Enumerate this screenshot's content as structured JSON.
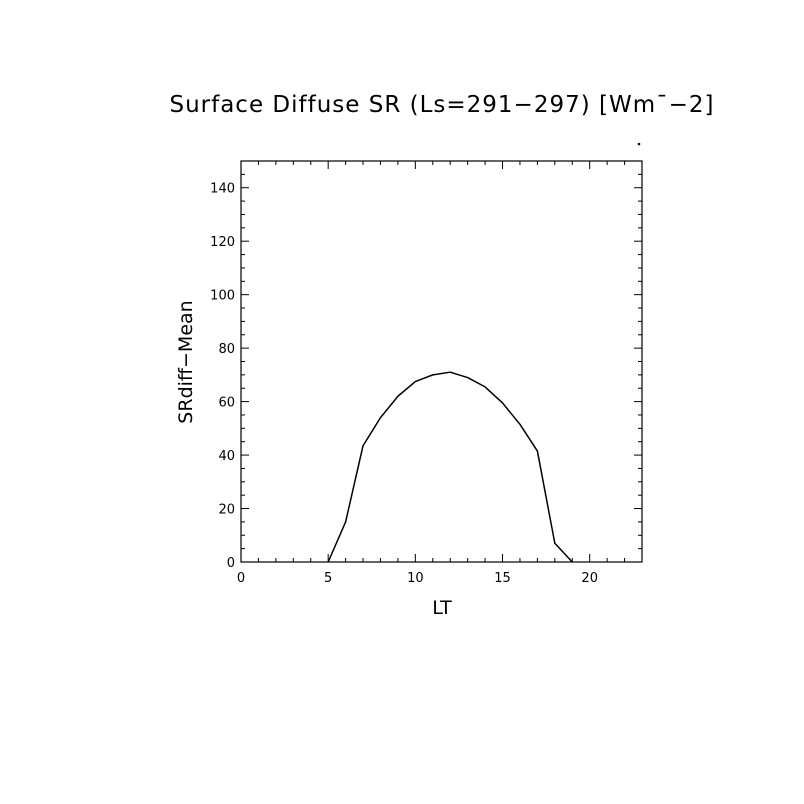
{
  "chart_data": {
    "type": "line",
    "title": "Surface Diffuse SR (Ls=291−297) [Wm¯−2]",
    "xlabel": "LT",
    "ylabel": "SRdiff−Mean",
    "xlim": [
      0,
      23
    ],
    "ylim": [
      0,
      150
    ],
    "xticks": [
      0,
      5,
      10,
      15,
      20
    ],
    "xtick_labels": [
      "0",
      "5",
      "10",
      "15",
      "20"
    ],
    "yticks": [
      0,
      20,
      40,
      60,
      80,
      100,
      120,
      140
    ],
    "ytick_labels": [
      "0",
      "20",
      "40",
      "60",
      "80",
      "100",
      "120",
      "140"
    ],
    "grid": false,
    "series": [
      {
        "x": [
          5,
          6,
          7,
          8,
          9,
          10,
          11,
          12,
          13,
          14,
          15,
          16,
          17,
          18,
          19
        ],
        "y": [
          0,
          15,
          43.5,
          54,
          62,
          67.5,
          70,
          71,
          69,
          65.5,
          59.5,
          51.5,
          41.5,
          7,
          0
        ]
      }
    ]
  },
  "colors": {
    "line": "#000000",
    "axes": "#000000",
    "background": "#ffffff"
  }
}
